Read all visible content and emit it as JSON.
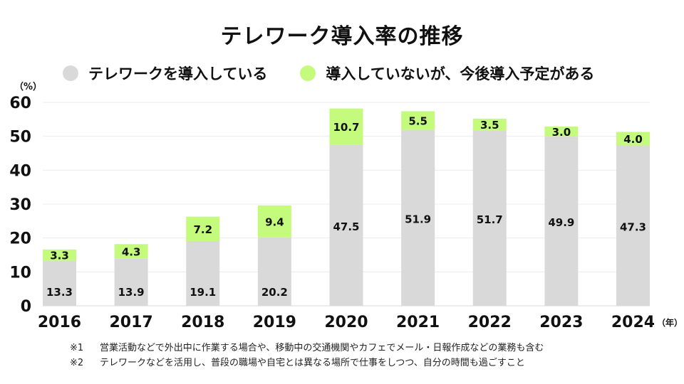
{
  "chart_data": {
    "type": "bar",
    "stacked": true,
    "title": "テレワーク導入率の推移",
    "ylabel": "（%）",
    "xlabel": "（年）",
    "ylim": [
      0,
      60
    ],
    "yticks": [
      0,
      10,
      20,
      30,
      40,
      50,
      60
    ],
    "grid": true,
    "legend_position": "top",
    "categories": [
      "2016",
      "2017",
      "2018",
      "2019",
      "2020",
      "2021",
      "2022",
      "2023",
      "2024"
    ],
    "series": [
      {
        "name": "テレワークを導入している",
        "color": "#d9d9d9",
        "values": [
          13.3,
          13.9,
          19.1,
          20.2,
          47.5,
          51.9,
          51.7,
          49.9,
          47.3
        ]
      },
      {
        "name": "導入していないが、今後導入予定がある",
        "color": "#c4fb7c",
        "values": [
          3.3,
          4.3,
          7.2,
          9.4,
          10.7,
          5.5,
          3.5,
          3.0,
          4.0
        ]
      }
    ],
    "labels": [
      [
        "13.3",
        "13.9",
        "19.1",
        "20.2",
        "47.5",
        "51.9",
        "51.7",
        "49.9",
        "47.3"
      ],
      [
        "3.3",
        "4.3",
        "7.2",
        "9.4",
        "10.7",
        "5.5",
        "3.5",
        "3.0",
        "4.0"
      ]
    ]
  },
  "notes": [
    {
      "mark": "※1",
      "text": "営業活動などで外出中に作業する場合や、移動中の交通機関やカフェでメール・日報作成などの業務も含む"
    },
    {
      "mark": "※2",
      "text": "テレワークなどを活用し、普段の職場や自宅とは異なる場所で仕事をしつつ、自分の時間も過ごすこと"
    }
  ]
}
